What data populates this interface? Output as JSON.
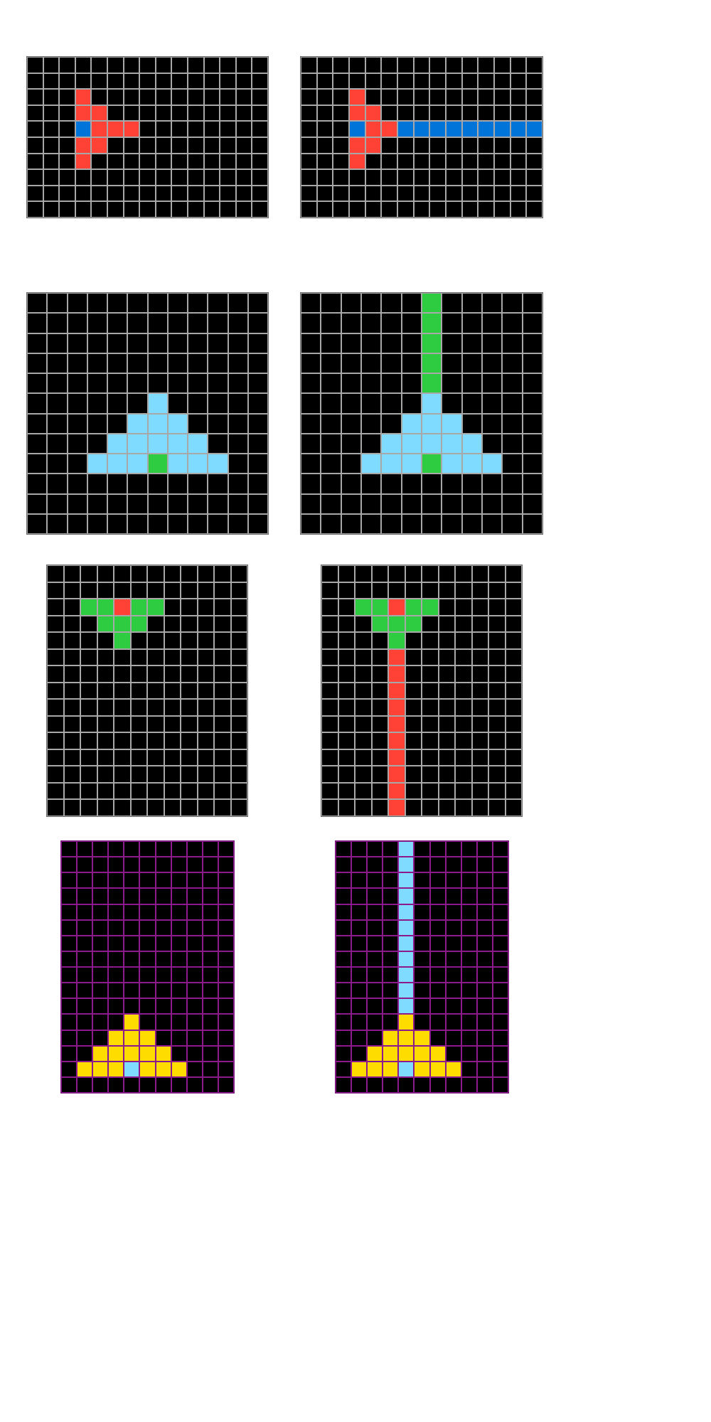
{
  "palette": {
    "0": "#000000",
    "1": "#0074d9",
    "2": "#ff4136",
    "3": "#2ecc40",
    "4": "#ffdc00",
    "8": "#7fdbff"
  },
  "pairs": [
    {
      "input": {
        "rows": 10,
        "cols": 15,
        "grid_style": "gray",
        "cells": [
          [
            2,
            3,
            2
          ],
          [
            3,
            3,
            2
          ],
          [
            3,
            4,
            2
          ],
          [
            4,
            3,
            1
          ],
          [
            4,
            4,
            2
          ],
          [
            4,
            5,
            2
          ],
          [
            4,
            6,
            2
          ],
          [
            5,
            3,
            2
          ],
          [
            5,
            4,
            2
          ],
          [
            6,
            3,
            2
          ]
        ]
      },
      "output": {
        "rows": 10,
        "cols": 15,
        "grid_style": "gray",
        "cells": [
          [
            2,
            3,
            2
          ],
          [
            3,
            3,
            2
          ],
          [
            3,
            4,
            2
          ],
          [
            4,
            3,
            1
          ],
          [
            4,
            4,
            2
          ],
          [
            4,
            5,
            2
          ],
          [
            4,
            6,
            1
          ],
          [
            4,
            7,
            1
          ],
          [
            4,
            8,
            1
          ],
          [
            4,
            9,
            1
          ],
          [
            4,
            10,
            1
          ],
          [
            4,
            11,
            1
          ],
          [
            4,
            12,
            1
          ],
          [
            4,
            13,
            1
          ],
          [
            4,
            14,
            1
          ],
          [
            5,
            3,
            2
          ],
          [
            5,
            4,
            2
          ],
          [
            6,
            3,
            2
          ]
        ]
      }
    },
    {
      "input": {
        "rows": 12,
        "cols": 12,
        "grid_style": "gray",
        "cells": [
          [
            5,
            6,
            8
          ],
          [
            6,
            5,
            8
          ],
          [
            6,
            6,
            8
          ],
          [
            6,
            7,
            8
          ],
          [
            7,
            4,
            8
          ],
          [
            7,
            5,
            8
          ],
          [
            7,
            6,
            8
          ],
          [
            7,
            7,
            8
          ],
          [
            7,
            8,
            8
          ],
          [
            8,
            3,
            8
          ],
          [
            8,
            4,
            8
          ],
          [
            8,
            5,
            8
          ],
          [
            8,
            6,
            3
          ],
          [
            8,
            7,
            8
          ],
          [
            8,
            8,
            8
          ],
          [
            8,
            9,
            8
          ]
        ]
      },
      "output": {
        "rows": 12,
        "cols": 12,
        "grid_style": "gray",
        "cells": [
          [
            0,
            6,
            3
          ],
          [
            1,
            6,
            3
          ],
          [
            2,
            6,
            3
          ],
          [
            3,
            6,
            3
          ],
          [
            4,
            6,
            3
          ],
          [
            5,
            6,
            8
          ],
          [
            6,
            5,
            8
          ],
          [
            6,
            6,
            8
          ],
          [
            6,
            7,
            8
          ],
          [
            7,
            4,
            8
          ],
          [
            7,
            5,
            8
          ],
          [
            7,
            6,
            8
          ],
          [
            7,
            7,
            8
          ],
          [
            7,
            8,
            8
          ],
          [
            8,
            3,
            8
          ],
          [
            8,
            4,
            8
          ],
          [
            8,
            5,
            8
          ],
          [
            8,
            6,
            3
          ],
          [
            8,
            7,
            8
          ],
          [
            8,
            8,
            8
          ],
          [
            8,
            9,
            8
          ]
        ]
      }
    },
    {
      "input": {
        "rows": 15,
        "cols": 12,
        "grid_style": "gray",
        "cells": [
          [
            2,
            2,
            3
          ],
          [
            2,
            3,
            3
          ],
          [
            2,
            4,
            2
          ],
          [
            2,
            5,
            3
          ],
          [
            2,
            6,
            3
          ],
          [
            3,
            3,
            3
          ],
          [
            3,
            4,
            3
          ],
          [
            3,
            5,
            3
          ],
          [
            4,
            4,
            3
          ]
        ]
      },
      "output": {
        "rows": 15,
        "cols": 12,
        "grid_style": "gray",
        "cells": [
          [
            2,
            2,
            3
          ],
          [
            2,
            3,
            3
          ],
          [
            2,
            4,
            2
          ],
          [
            2,
            5,
            3
          ],
          [
            2,
            6,
            3
          ],
          [
            3,
            3,
            3
          ],
          [
            3,
            4,
            3
          ],
          [
            3,
            5,
            3
          ],
          [
            4,
            4,
            3
          ],
          [
            5,
            4,
            2
          ],
          [
            6,
            4,
            2
          ],
          [
            7,
            4,
            2
          ],
          [
            8,
            4,
            2
          ],
          [
            9,
            4,
            2
          ],
          [
            10,
            4,
            2
          ],
          [
            11,
            4,
            2
          ],
          [
            12,
            4,
            2
          ],
          [
            13,
            4,
            2
          ],
          [
            14,
            4,
            2
          ]
        ]
      }
    },
    {
      "input": {
        "rows": 16,
        "cols": 11,
        "grid_style": "purple",
        "cells": [
          [
            11,
            4,
            4
          ],
          [
            12,
            3,
            4
          ],
          [
            12,
            4,
            4
          ],
          [
            12,
            5,
            4
          ],
          [
            13,
            2,
            4
          ],
          [
            13,
            3,
            4
          ],
          [
            13,
            4,
            4
          ],
          [
            13,
            5,
            4
          ],
          [
            13,
            6,
            4
          ],
          [
            14,
            1,
            4
          ],
          [
            14,
            2,
            4
          ],
          [
            14,
            3,
            4
          ],
          [
            14,
            4,
            8
          ],
          [
            14,
            5,
            4
          ],
          [
            14,
            6,
            4
          ],
          [
            14,
            7,
            4
          ]
        ]
      },
      "output": {
        "rows": 16,
        "cols": 11,
        "grid_style": "purple",
        "cells": [
          [
            0,
            4,
            8
          ],
          [
            1,
            4,
            8
          ],
          [
            2,
            4,
            8
          ],
          [
            3,
            4,
            8
          ],
          [
            4,
            4,
            8
          ],
          [
            5,
            4,
            8
          ],
          [
            6,
            4,
            8
          ],
          [
            7,
            4,
            8
          ],
          [
            8,
            4,
            8
          ],
          [
            9,
            4,
            8
          ],
          [
            10,
            4,
            8
          ],
          [
            11,
            4,
            4
          ],
          [
            12,
            3,
            4
          ],
          [
            12,
            4,
            4
          ],
          [
            12,
            5,
            4
          ],
          [
            13,
            2,
            4
          ],
          [
            13,
            3,
            4
          ],
          [
            13,
            4,
            4
          ],
          [
            13,
            5,
            4
          ],
          [
            13,
            6,
            4
          ],
          [
            14,
            1,
            4
          ],
          [
            14,
            2,
            4
          ],
          [
            14,
            3,
            4
          ],
          [
            14,
            4,
            8
          ],
          [
            14,
            5,
            4
          ],
          [
            14,
            6,
            4
          ],
          [
            14,
            7,
            4
          ]
        ]
      }
    }
  ]
}
